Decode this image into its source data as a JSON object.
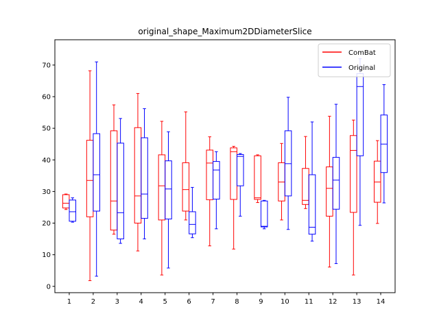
{
  "chart_data": {
    "type": "box",
    "title": "original_shape_Maximum2DDiameterSlice",
    "xlabel": "",
    "ylabel": "",
    "categories": [
      "1",
      "2",
      "3",
      "4",
      "5",
      "6",
      "7",
      "8",
      "9",
      "10",
      "11",
      "12",
      "13",
      "14"
    ],
    "ylim": [
      -2,
      78
    ],
    "yticks": [
      0,
      10,
      20,
      30,
      40,
      50,
      60,
      70
    ],
    "grid": false,
    "legend_position": "top-right",
    "series": [
      {
        "name": "ComBat",
        "color": "#ff0000",
        "boxes": [
          {
            "whislo": 24.3,
            "q1": 24.8,
            "med": 26.3,
            "q3": 29.0,
            "whishi": 29.2
          },
          {
            "whislo": 1.8,
            "q1": 22.0,
            "med": 33.5,
            "q3": 46.2,
            "whishi": 68.2
          },
          {
            "whislo": 16.5,
            "q1": 17.8,
            "med": 27.0,
            "q3": 49.2,
            "whishi": 57.4
          },
          {
            "whislo": 11.2,
            "q1": 20.0,
            "med": 28.6,
            "q3": 50.2,
            "whishi": 61.0
          },
          {
            "whislo": 3.6,
            "q1": 21.0,
            "med": 31.8,
            "q3": 41.6,
            "whishi": 52.2
          },
          {
            "whislo": 21.0,
            "q1": 23.8,
            "med": 30.6,
            "q3": 39.1,
            "whishi": 55.2
          },
          {
            "whislo": 12.8,
            "q1": 27.4,
            "med": 39.0,
            "q3": 43.1,
            "whishi": 47.3
          },
          {
            "whislo": 11.8,
            "q1": 27.5,
            "med": 42.6,
            "q3": 43.8,
            "whishi": 44.3
          },
          {
            "whislo": 26.5,
            "q1": 27.5,
            "med": 28.0,
            "q3": 41.3,
            "whishi": 41.6
          },
          {
            "whislo": 21.0,
            "q1": 27.0,
            "med": 33.0,
            "q3": 39.1,
            "whishi": 45.2
          },
          {
            "whislo": 24.6,
            "q1": 25.9,
            "med": 27.2,
            "q3": 37.3,
            "whishi": 47.4
          },
          {
            "whislo": 6.1,
            "q1": 22.2,
            "med": 31.0,
            "q3": 37.8,
            "whishi": 53.8
          },
          {
            "whislo": 3.6,
            "q1": 23.4,
            "med": 43.0,
            "q3": 47.7,
            "whishi": 52.6
          },
          {
            "whislo": 19.9,
            "q1": 26.6,
            "med": 33.0,
            "q3": 39.6,
            "whishi": 46.1
          }
        ]
      },
      {
        "name": "Original",
        "color": "#0000ff",
        "boxes": [
          {
            "whislo": 20.3,
            "q1": 20.6,
            "med": 23.6,
            "q3": 27.3,
            "whishi": 28.0
          },
          {
            "whislo": 3.2,
            "q1": 23.8,
            "med": 35.3,
            "q3": 48.3,
            "whishi": 71.0
          },
          {
            "whislo": 13.6,
            "q1": 15.0,
            "med": 23.3,
            "q3": 45.3,
            "whishi": 53.1
          },
          {
            "whislo": 15.0,
            "q1": 21.5,
            "med": 29.2,
            "q3": 47.0,
            "whishi": 56.2
          },
          {
            "whislo": 5.8,
            "q1": 21.3,
            "med": 30.8,
            "q3": 39.7,
            "whishi": 48.9
          },
          {
            "whislo": 15.4,
            "q1": 16.6,
            "med": 19.6,
            "q3": 23.6,
            "whishi": 31.3
          },
          {
            "whislo": 18.2,
            "q1": 27.6,
            "med": 36.8,
            "q3": 39.5,
            "whishi": 42.6
          },
          {
            "whislo": 22.2,
            "q1": 31.8,
            "med": 41.1,
            "q3": 41.7,
            "whishi": 42.0
          },
          {
            "whislo": 18.2,
            "q1": 18.8,
            "med": 19.0,
            "q3": 27.0,
            "whishi": 27.2
          },
          {
            "whislo": 18.0,
            "q1": 28.6,
            "med": 38.8,
            "q3": 49.2,
            "whishi": 59.8
          },
          {
            "whislo": 14.3,
            "q1": 16.5,
            "med": 18.7,
            "q3": 35.3,
            "whishi": 52.0
          },
          {
            "whislo": 7.2,
            "q1": 24.4,
            "med": 33.6,
            "q3": 40.8,
            "whishi": 57.6
          },
          {
            "whislo": 19.3,
            "q1": 41.3,
            "med": 63.2,
            "q3": 67.3,
            "whishi": 72.0
          },
          {
            "whislo": 26.4,
            "q1": 36.0,
            "med": 45.0,
            "q3": 54.2,
            "whishi": 63.8
          }
        ]
      }
    ]
  }
}
